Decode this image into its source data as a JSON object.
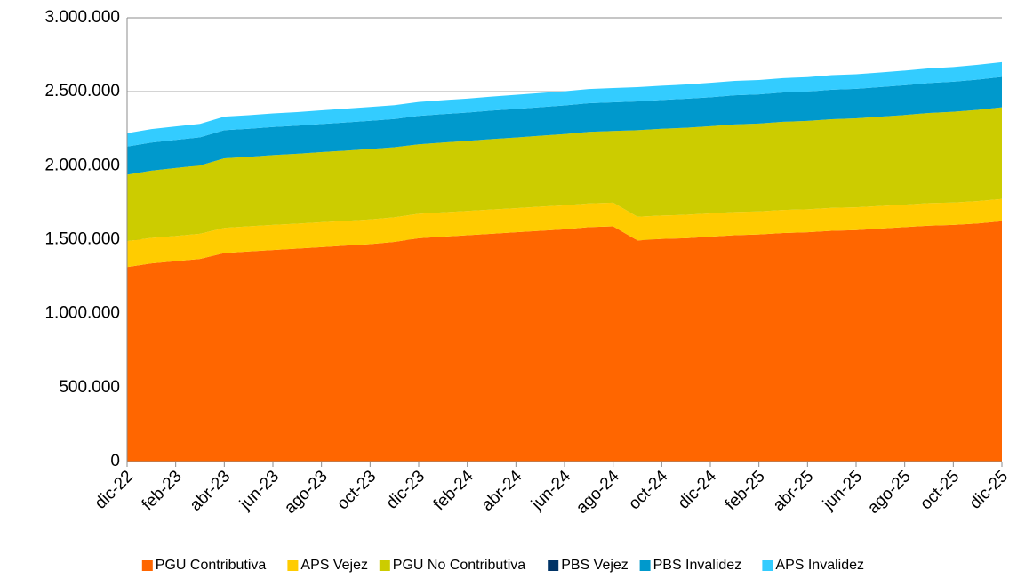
{
  "chart_data": {
    "type": "stacked-area",
    "categories": [
      "dic-22",
      null,
      "feb-23",
      null,
      "abr-23",
      null,
      "jun-23",
      null,
      "ago-23",
      null,
      "oct-23",
      null,
      "dic-23",
      null,
      "feb-24",
      null,
      "abr-24",
      null,
      "jun-24",
      null,
      "ago-24",
      null,
      "oct-24",
      null,
      "dic-24",
      null,
      "feb-25",
      null,
      "abr-25",
      null,
      "jun-25",
      null,
      "ago-25",
      null,
      "oct-25",
      null,
      "dic-25"
    ],
    "series": [
      {
        "name": "PGU Contributiva",
        "color": "#ff6600",
        "values": [
          1315000,
          1340000,
          1355000,
          1370000,
          1410000,
          1420000,
          1430000,
          1440000,
          1450000,
          1460000,
          1470000,
          1485000,
          1510000,
          1520000,
          1530000,
          1540000,
          1550000,
          1560000,
          1570000,
          1585000,
          1590000,
          1495000,
          1505000,
          1510000,
          1520000,
          1530000,
          1535000,
          1545000,
          1550000,
          1560000,
          1565000,
          1575000,
          1585000,
          1595000,
          1600000,
          1610000,
          1625000
        ]
      },
      {
        "name": "APS Vejez",
        "color": "#ffcc00",
        "values": [
          175000,
          172000,
          170000,
          170000,
          170000,
          170000,
          170000,
          168000,
          168000,
          167000,
          167000,
          166000,
          165000,
          165000,
          164000,
          164000,
          163000,
          163000,
          162000,
          160000,
          160000,
          160000,
          158000,
          158000,
          157000,
          157000,
          156000,
          156000,
          155000,
          155000,
          154000,
          153000,
          152000,
          152000,
          151000,
          151000,
          150000
        ]
      },
      {
        "name": "PGU No Contributiva",
        "color": "#cccc00",
        "values": [
          450000,
          455000,
          460000,
          462000,
          470000,
          470000,
          472000,
          473000,
          474000,
          475000,
          476000,
          474000,
          470000,
          472000,
          474000,
          476000,
          478000,
          480000,
          482000,
          484000,
          485000,
          585000,
          587000,
          589000,
          590000,
          592000,
          594000,
          596000,
          598000,
          600000,
          602000,
          604000,
          606000,
          610000,
          614000,
          617000,
          620000
        ]
      },
      {
        "name": "PBS Vejez",
        "color": "#003366",
        "values": [
          0,
          0,
          0,
          0,
          0,
          0,
          0,
          0,
          0,
          0,
          0,
          0,
          0,
          0,
          0,
          0,
          0,
          0,
          0,
          0,
          0,
          0,
          0,
          0,
          0,
          0,
          0,
          0,
          0,
          0,
          0,
          0,
          0,
          0,
          0,
          0,
          0
        ]
      },
      {
        "name": "PBS Invalidez",
        "color": "#0099cc",
        "values": [
          190000,
          190000,
          190000,
          190000,
          190000,
          190000,
          190000,
          190000,
          190000,
          191000,
          191000,
          191000,
          192000,
          192000,
          192000,
          193000,
          193000,
          193000,
          194000,
          194000,
          194000,
          195000,
          195000,
          196000,
          196000,
          197000,
          197000,
          198000,
          198000,
          199000,
          199000,
          200000,
          201000,
          202000,
          203000,
          204000,
          205000
        ]
      },
      {
        "name": "APS Invalidez",
        "color": "#33ccff",
        "values": [
          90000,
          91000,
          91000,
          91000,
          92000,
          92000,
          92000,
          92000,
          93000,
          93000,
          93000,
          93000,
          94000,
          94000,
          94000,
          94000,
          95000,
          95000,
          95000,
          95000,
          96000,
          96000,
          96000,
          96000,
          97000,
          97000,
          97000,
          97000,
          98000,
          98000,
          98000,
          98000,
          99000,
          99000,
          99000,
          100000,
          100000
        ]
      }
    ],
    "ylim": [
      0,
      3000000
    ],
    "yticks": [
      0,
      {
        "value": 500000,
        "label": "500.000"
      },
      {
        "value": 1000000,
        "label": "1.000.000"
      },
      {
        "value": 1500000,
        "label": "1.500.000"
      },
      {
        "value": 2000000,
        "label": "2.000.000"
      },
      {
        "value": 2500000,
        "label": "2.500.000"
      },
      {
        "value": 3000000,
        "label": "3.000.000"
      }
    ],
    "grid": true,
    "legend": "bottom"
  }
}
